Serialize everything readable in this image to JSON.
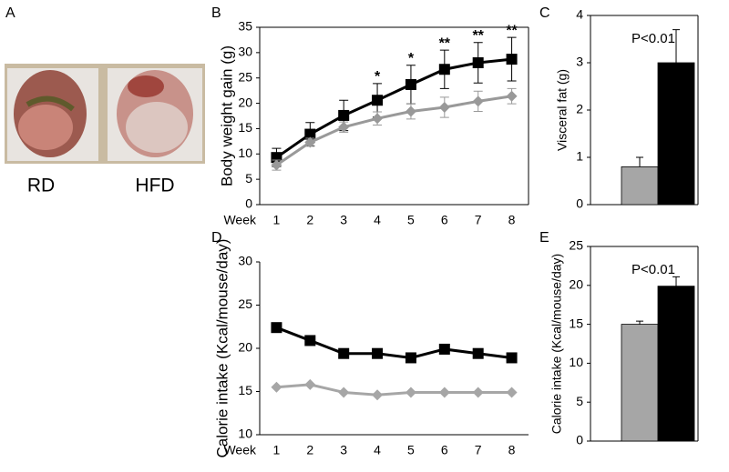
{
  "photo": {
    "label": "A",
    "captions": [
      "RD",
      "HFD"
    ]
  },
  "chart_data": [
    {
      "type": "line",
      "label": "B",
      "ylabel": "Body weight gain (g)",
      "xlabel": "Week",
      "categories": [
        "1",
        "2",
        "3",
        "4",
        "5",
        "6",
        "7",
        "8"
      ],
      "ylim": [
        0,
        35
      ],
      "yticks": [
        0,
        5,
        10,
        15,
        20,
        25,
        30,
        35
      ],
      "box": true,
      "series": [
        {
          "color": "#000000",
          "marker": "square",
          "values": [
            9.3,
            13.9,
            17.6,
            20.6,
            23.7,
            26.7,
            28.0,
            28.7
          ],
          "errors": [
            1.8,
            2.3,
            3.0,
            3.3,
            3.8,
            3.8,
            4.0,
            4.3
          ]
        },
        {
          "color": "#999999",
          "marker": "diamond",
          "values": [
            7.8,
            12.3,
            15.3,
            17.0,
            18.4,
            19.2,
            20.4,
            21.4
          ],
          "errors": [
            1.0,
            0.8,
            1.0,
            1.3,
            1.5,
            2.0,
            2.0,
            1.5
          ]
        }
      ],
      "significance": [
        null,
        null,
        null,
        "*",
        "*",
        "**",
        "**",
        "**"
      ]
    },
    {
      "type": "bar",
      "label": "C",
      "ylabel": "Visceral fat (g)",
      "annotation": "P<0.01",
      "ylim": [
        0,
        4
      ],
      "yticks": [
        0,
        1,
        2,
        3,
        4
      ],
      "box": true,
      "values": [
        0.8,
        3.0
      ],
      "errors": [
        0.2,
        0.7
      ],
      "colors": [
        "#a6a6a6",
        "#000000"
      ]
    },
    {
      "type": "line",
      "label": "D",
      "ylabel": "Calorie intake (Kcal/mouse/day)",
      "xlabel": "Week",
      "categories": [
        "1",
        "2",
        "3",
        "4",
        "5",
        "6",
        "7",
        "8"
      ],
      "ylim": [
        10,
        30
      ],
      "yticks": [
        10,
        15,
        20,
        25,
        30
      ],
      "box": false,
      "series": [
        {
          "color": "#000000",
          "marker": "square",
          "values": [
            22.4,
            20.9,
            19.4,
            19.4,
            18.9,
            19.9,
            19.4,
            18.9
          ]
        },
        {
          "color": "#a6a6a6",
          "marker": "diamond",
          "values": [
            15.5,
            15.8,
            14.9,
            14.6,
            14.9,
            14.9,
            14.9,
            14.9
          ]
        }
      ]
    },
    {
      "type": "bar",
      "label": "E",
      "ylabel": "Calorie intake (Kcal/mouse/day)",
      "annotation": "P<0.01",
      "ylim": [
        0,
        25
      ],
      "yticks": [
        0,
        5,
        10,
        15,
        20,
        25
      ],
      "box": true,
      "values": [
        15.0,
        19.9
      ],
      "errors": [
        0.4,
        1.2
      ],
      "colors": [
        "#a6a6a6",
        "#000000"
      ]
    }
  ]
}
